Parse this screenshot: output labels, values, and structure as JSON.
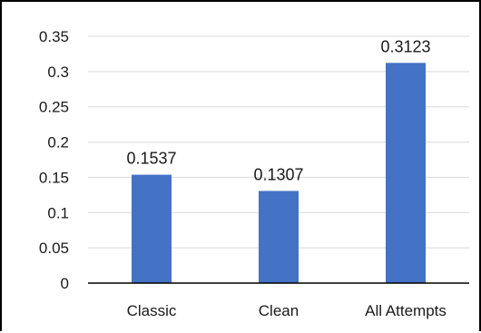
{
  "chart_data": {
    "type": "bar",
    "categories": [
      "Classic",
      "Clean",
      "All Attempts"
    ],
    "values": [
      0.1537,
      0.1307,
      0.3123
    ],
    "data_labels": [
      "0.1537",
      "0.1307",
      "0.3123"
    ],
    "yticks": [
      "0",
      "0.05",
      "0.1",
      "0.15",
      "0.2",
      "0.25",
      "0.3",
      "0.35"
    ],
    "ytick_values": [
      0,
      0.05,
      0.1,
      0.15,
      0.2,
      0.25,
      0.3,
      0.35
    ],
    "ylim": [
      0,
      0.35
    ],
    "title": "",
    "xlabel": "",
    "ylabel": "",
    "grid": true,
    "legend": "none",
    "bar_color": "#4472C4",
    "grid_color": "#d9d9d9",
    "axis_color": "#000000"
  }
}
